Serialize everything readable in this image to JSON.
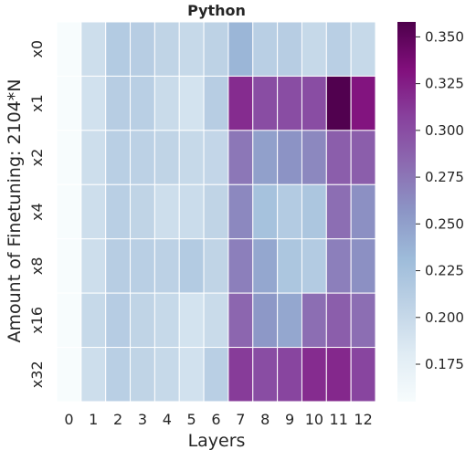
{
  "chart_data": {
    "type": "heatmap",
    "title": "Python",
    "xlabel": "Layers",
    "ylabel": "Amount of Finetuning: 2104*N",
    "x_categories": [
      "0",
      "1",
      "2",
      "3",
      "4",
      "5",
      "6",
      "7",
      "8",
      "9",
      "10",
      "11",
      "12"
    ],
    "y_categories": [
      "x0",
      "x1",
      "x2",
      "x4",
      "x8",
      "x16",
      "x32"
    ],
    "values": [
      [
        0.155,
        0.195,
        0.215,
        0.212,
        0.205,
        0.2,
        0.207,
        0.235,
        0.21,
        0.212,
        0.2,
        0.21,
        0.2
      ],
      [
        0.155,
        0.192,
        0.212,
        0.21,
        0.198,
        0.19,
        0.212,
        0.318,
        0.3,
        0.3,
        0.3,
        0.356,
        0.33
      ],
      [
        0.155,
        0.195,
        0.21,
        0.208,
        0.205,
        0.2,
        0.203,
        0.275,
        0.25,
        0.258,
        0.265,
        0.29,
        0.29
      ],
      [
        0.155,
        0.195,
        0.21,
        0.205,
        0.195,
        0.197,
        0.205,
        0.265,
        0.225,
        0.215,
        0.22,
        0.28,
        0.26
      ],
      [
        0.155,
        0.195,
        0.212,
        0.21,
        0.208,
        0.215,
        0.205,
        0.27,
        0.245,
        0.22,
        0.215,
        0.27,
        0.26
      ],
      [
        0.155,
        0.2,
        0.213,
        0.205,
        0.2,
        0.19,
        0.198,
        0.285,
        0.255,
        0.245,
        0.28,
        0.29,
        0.28
      ],
      [
        0.155,
        0.195,
        0.21,
        0.205,
        0.2,
        0.192,
        0.21,
        0.31,
        0.3,
        0.305,
        0.318,
        0.32,
        0.305
      ]
    ],
    "vmin": 0.155,
    "vmax": 0.358,
    "colormap": "BuPu",
    "colormap_stops": [
      "#f7fcfd",
      "#e0ecf4",
      "#bfd3e6",
      "#9ebcda",
      "#8c96c6",
      "#8c6bb1",
      "#88419d",
      "#810f7c",
      "#4d004b"
    ],
    "colorbar_ticks": [
      0.175,
      0.2,
      0.225,
      0.25,
      0.275,
      0.3,
      0.325,
      0.35
    ],
    "colorbar_tick_labels": [
      "0.175",
      "0.200",
      "0.225",
      "0.250",
      "0.275",
      "0.300",
      "0.325",
      "0.350"
    ],
    "grid": true,
    "cell_border_color": "#ffffff"
  }
}
